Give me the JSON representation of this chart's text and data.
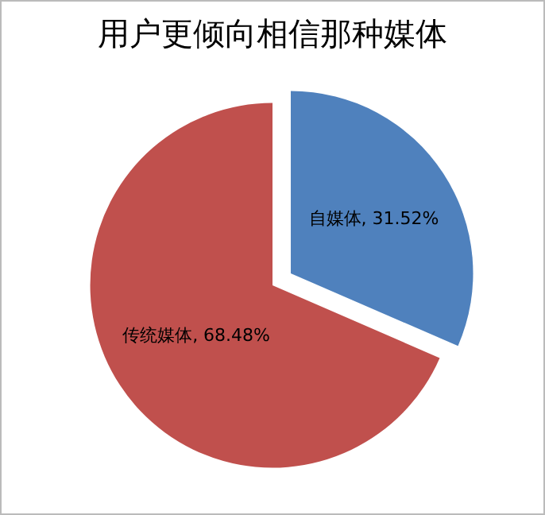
{
  "chart_data": {
    "type": "pie",
    "title": "用户更倾向相信那种媒体",
    "categories": [
      "自媒体",
      "传统媒体"
    ],
    "values": [
      31.52,
      68.48
    ],
    "value_labels": [
      "31.52%",
      "68.48%"
    ],
    "colors": [
      "#4f81bd",
      "#c0504d"
    ],
    "legend": false
  }
}
